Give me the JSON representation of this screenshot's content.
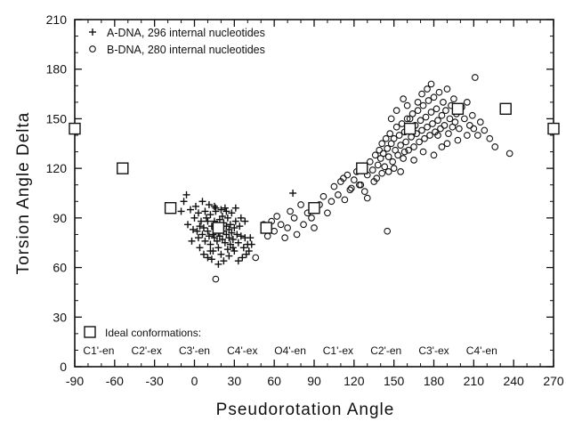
{
  "chart_data": {
    "type": "scatter",
    "xlabel": "Pseudorotation Angle",
    "ylabel": "Torsion Angle Delta",
    "xlim": [
      -90,
      270
    ],
    "ylim": [
      0,
      210
    ],
    "x_ticks": [
      "-90",
      "-60",
      "-30",
      "0",
      "30",
      "60",
      "90",
      "120",
      "150",
      "180",
      "210",
      "240",
      "270"
    ],
    "y_ticks": [
      "0",
      "30",
      "60",
      "90",
      "120",
      "150",
      "180",
      "210"
    ],
    "grid": false,
    "legend_position": "top-left",
    "series": [
      {
        "name": "A-DNA, 296 internal nucleotides",
        "marker": "plus",
        "points": [
          [
            -5,
            86
          ],
          [
            0,
            90
          ],
          [
            2,
            82
          ],
          [
            3,
            78
          ],
          [
            4,
            85
          ],
          [
            5,
            88
          ],
          [
            6,
            80
          ],
          [
            7,
            84
          ],
          [
            8,
            76
          ],
          [
            9,
            90
          ],
          [
            10,
            82
          ],
          [
            10,
            88
          ],
          [
            11,
            79
          ],
          [
            12,
            92
          ],
          [
            12,
            74
          ],
          [
            13,
            85
          ],
          [
            14,
            80
          ],
          [
            14,
            70
          ],
          [
            15,
            88
          ],
          [
            15,
            78
          ],
          [
            16,
            83
          ],
          [
            16,
            94
          ],
          [
            17,
            76
          ],
          [
            17,
            86
          ],
          [
            18,
            81
          ],
          [
            18,
            72
          ],
          [
            19,
            89
          ],
          [
            19,
            79
          ],
          [
            20,
            84
          ],
          [
            20,
            68
          ],
          [
            21,
            91
          ],
          [
            21,
            77
          ],
          [
            22,
            82
          ],
          [
            22,
            87
          ],
          [
            23,
            75
          ],
          [
            23,
            96
          ],
          [
            24,
            80
          ],
          [
            24,
            85
          ],
          [
            25,
            71
          ],
          [
            25,
            90
          ],
          [
            26,
            83
          ],
          [
            26,
            78
          ],
          [
            27,
            86
          ],
          [
            27,
            74
          ],
          [
            28,
            81
          ],
          [
            28,
            93
          ],
          [
            29,
            77
          ],
          [
            30,
            84
          ],
          [
            30,
            70
          ],
          [
            31,
            88
          ],
          [
            32,
            80
          ],
          [
            33,
            75
          ],
          [
            34,
            85
          ],
          [
            35,
            79
          ],
          [
            36,
            66
          ],
          [
            37,
            72
          ],
          [
            38,
            78
          ],
          [
            39,
            68
          ],
          [
            40,
            74
          ],
          [
            41,
            70
          ],
          [
            -8,
            100
          ],
          [
            -6,
            104
          ],
          [
            -10,
            94
          ],
          [
            -3,
            95
          ],
          [
            1,
            97
          ],
          [
            6,
            100
          ],
          [
            11,
            98
          ],
          [
            16,
            96
          ],
          [
            20,
            95
          ],
          [
            -2,
            76
          ],
          [
            4,
            72
          ],
          [
            7,
            68
          ],
          [
            10,
            66
          ],
          [
            13,
            65
          ],
          [
            18,
            62
          ],
          [
            22,
            64
          ],
          [
            26,
            67
          ],
          [
            29,
            72
          ],
          [
            33,
            64
          ],
          [
            3,
            93
          ],
          [
            8,
            94
          ],
          [
            12,
            70
          ],
          [
            24,
            94
          ],
          [
            31,
            96
          ],
          [
            35,
            90
          ],
          [
            38,
            88
          ],
          [
            15,
            97
          ],
          [
            -1,
            83
          ],
          [
            42,
            78
          ],
          [
            74,
            105
          ],
          [
            43,
            74
          ]
        ]
      },
      {
        "name": "B-DNA, 280 internal nucleotides",
        "marker": "circle",
        "points": [
          [
            16,
            53
          ],
          [
            46,
            66
          ],
          [
            52,
            86
          ],
          [
            55,
            79
          ],
          [
            58,
            88
          ],
          [
            60,
            82
          ],
          [
            62,
            91
          ],
          [
            65,
            86
          ],
          [
            68,
            78
          ],
          [
            70,
            84
          ],
          [
            72,
            94
          ],
          [
            75,
            90
          ],
          [
            77,
            80
          ],
          [
            80,
            98
          ],
          [
            82,
            86
          ],
          [
            85,
            93
          ],
          [
            88,
            90
          ],
          [
            90,
            84
          ],
          [
            94,
            98
          ],
          [
            97,
            103
          ],
          [
            100,
            93
          ],
          [
            103,
            100
          ],
          [
            105,
            109
          ],
          [
            108,
            104
          ],
          [
            110,
            112
          ],
          [
            113,
            101
          ],
          [
            115,
            116
          ],
          [
            117,
            107
          ],
          [
            120,
            113
          ],
          [
            122,
            118
          ],
          [
            124,
            110
          ],
          [
            126,
            120
          ],
          [
            128,
            106
          ],
          [
            130,
            116
          ],
          [
            132,
            124
          ],
          [
            134,
            119
          ],
          [
            136,
            128
          ],
          [
            138,
            122
          ],
          [
            139,
            131
          ],
          [
            140,
            126
          ],
          [
            141,
            135
          ],
          [
            142,
            129
          ],
          [
            143,
            121
          ],
          [
            144,
            138
          ],
          [
            145,
            132
          ],
          [
            146,
            127
          ],
          [
            147,
            141
          ],
          [
            148,
            135
          ],
          [
            149,
            124
          ],
          [
            150,
            138
          ],
          [
            151,
            131
          ],
          [
            152,
            145
          ],
          [
            153,
            128
          ],
          [
            154,
            140
          ],
          [
            155,
            134
          ],
          [
            156,
            147
          ],
          [
            157,
            126
          ],
          [
            158,
            142
          ],
          [
            159,
            136
          ],
          [
            160,
            150
          ],
          [
            161,
            131
          ],
          [
            162,
            144
          ],
          [
            163,
            139
          ],
          [
            164,
            153
          ],
          [
            165,
            133
          ],
          [
            166,
            146
          ],
          [
            167,
            141
          ],
          [
            168,
            155
          ],
          [
            169,
            136
          ],
          [
            170,
            149
          ],
          [
            171,
            143
          ],
          [
            172,
            158
          ],
          [
            173,
            138
          ],
          [
            174,
            151
          ],
          [
            175,
            145
          ],
          [
            176,
            161
          ],
          [
            177,
            140
          ],
          [
            178,
            154
          ],
          [
            179,
            147
          ],
          [
            180,
            163
          ],
          [
            181,
            142
          ],
          [
            182,
            156
          ],
          [
            183,
            149
          ],
          [
            184,
            166
          ],
          [
            185,
            144
          ],
          [
            186,
            152
          ],
          [
            187,
            160
          ],
          [
            188,
            146
          ],
          [
            189,
            155
          ],
          [
            190,
            168
          ],
          [
            191,
            141
          ],
          [
            192,
            150
          ],
          [
            193,
            158
          ],
          [
            194,
            145
          ],
          [
            195,
            162
          ],
          [
            196,
            148
          ],
          [
            197,
            153
          ],
          [
            199,
            144
          ],
          [
            201,
            157
          ],
          [
            203,
            150
          ],
          [
            205,
            160
          ],
          [
            207,
            146
          ],
          [
            209,
            152
          ],
          [
            211,
            175
          ],
          [
            213,
            140
          ],
          [
            215,
            148
          ],
          [
            218,
            143
          ],
          [
            222,
            138
          ],
          [
            226,
            133
          ],
          [
            237,
            129
          ],
          [
            145,
            82
          ],
          [
            125,
            110
          ],
          [
            130,
            102
          ],
          [
            135,
            112
          ],
          [
            150,
            120
          ],
          [
            155,
            118
          ],
          [
            165,
            125
          ],
          [
            172,
            130
          ],
          [
            180,
            128
          ],
          [
            186,
            133
          ],
          [
            112,
            114
          ],
          [
            118,
            108
          ],
          [
            137,
            114
          ],
          [
            141,
            117
          ],
          [
            146,
            118
          ],
          [
            158,
            130
          ],
          [
            175,
            168
          ],
          [
            178,
            171
          ],
          [
            168,
            160
          ],
          [
            160,
            158
          ],
          [
            148,
            150
          ],
          [
            152,
            155
          ],
          [
            157,
            162
          ],
          [
            162,
            150
          ],
          [
            171,
            165
          ],
          [
            183,
            140
          ],
          [
            190,
            135
          ],
          [
            198,
            137
          ],
          [
            205,
            140
          ],
          [
            210,
            144
          ]
        ]
      }
    ],
    "ideal_conformations": {
      "legend_label": "Ideal conformations:",
      "markers": [
        {
          "x": -90,
          "y": 144
        },
        {
          "x": -54,
          "y": 120
        },
        {
          "x": -18,
          "y": 96
        },
        {
          "x": 18,
          "y": 84
        },
        {
          "x": 54,
          "y": 84
        },
        {
          "x": 90,
          "y": 96
        },
        {
          "x": 126,
          "y": 120
        },
        {
          "x": 162,
          "y": 144
        },
        {
          "x": 198,
          "y": 156
        },
        {
          "x": 234,
          "y": 156
        },
        {
          "x": 270,
          "y": 144
        }
      ],
      "labels": [
        {
          "x": -72,
          "text": "C1'-en"
        },
        {
          "x": -36,
          "text": "C2'-ex"
        },
        {
          "x": 0,
          "text": "C3'-en"
        },
        {
          "x": 36,
          "text": "C4'-ex"
        },
        {
          "x": 72,
          "text": "O4'-en"
        },
        {
          "x": 108,
          "text": "C1'-ex"
        },
        {
          "x": 144,
          "text": "C2'-en"
        },
        {
          "x": 180,
          "text": "C3'-ex"
        },
        {
          "x": 216,
          "text": "C4'-en"
        }
      ]
    }
  }
}
